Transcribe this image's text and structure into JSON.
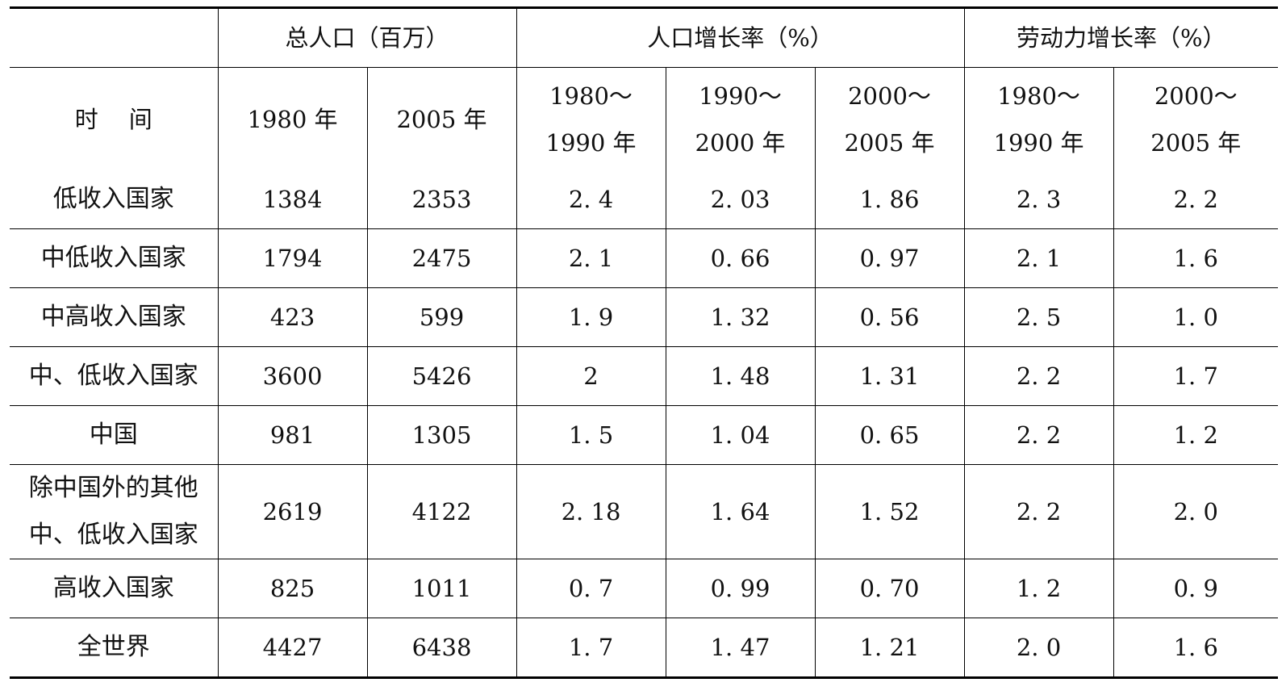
{
  "header": {
    "group_total_population": "总人口（百万）",
    "group_population_growth": "人口增长率（%）",
    "group_labor_growth": "劳动力增长率（%）",
    "time_label": "时间",
    "sub": {
      "pop_1980": "1980 年",
      "pop_2005": "2005 年",
      "pg_1980_1990": [
        "1980～",
        "1990 年"
      ],
      "pg_1990_2000": [
        "1990～",
        "2000 年"
      ],
      "pg_2000_2005": [
        "2000～",
        "2005 年"
      ],
      "lg_1980_1990": [
        "1980～",
        "1990 年"
      ],
      "lg_2000_2005": [
        "2000～",
        "2005 年"
      ]
    }
  },
  "rows": [
    {
      "label": [
        "低收入国家"
      ],
      "values": [
        "1384",
        "2353",
        "2. 4",
        "2. 03",
        "1. 86",
        "2. 3",
        "2. 2"
      ]
    },
    {
      "label": [
        "中低收入国家"
      ],
      "values": [
        "1794",
        "2475",
        "2. 1",
        "0. 66",
        "0. 97",
        "2. 1",
        "1. 6"
      ]
    },
    {
      "label": [
        "中高收入国家"
      ],
      "values": [
        "423",
        "599",
        "1. 9",
        "1. 32",
        "0. 56",
        "2. 5",
        "1. 0"
      ]
    },
    {
      "label": [
        "中、低收入国家"
      ],
      "values": [
        "3600",
        "5426",
        "2",
        "1. 48",
        "1. 31",
        "2. 2",
        "1. 7"
      ]
    },
    {
      "label": [
        "中国"
      ],
      "values": [
        "981",
        "1305",
        "1. 5",
        "1. 04",
        "0. 65",
        "2. 2",
        "1. 2"
      ]
    },
    {
      "label": [
        "除中国外的其他",
        "中、低收入国家"
      ],
      "values": [
        "2619",
        "4122",
        "2. 18",
        "1. 64",
        "1. 52",
        "2. 2",
        "2. 0"
      ]
    },
    {
      "label": [
        "高收入国家"
      ],
      "values": [
        "825",
        "1011",
        "0. 7",
        "0. 99",
        "0. 70",
        "1. 2",
        "0. 9"
      ]
    },
    {
      "label": [
        "全世界"
      ],
      "values": [
        "4427",
        "6438",
        "1. 7",
        "1. 47",
        "1. 21",
        "2. 0",
        "1. 6"
      ]
    }
  ]
}
